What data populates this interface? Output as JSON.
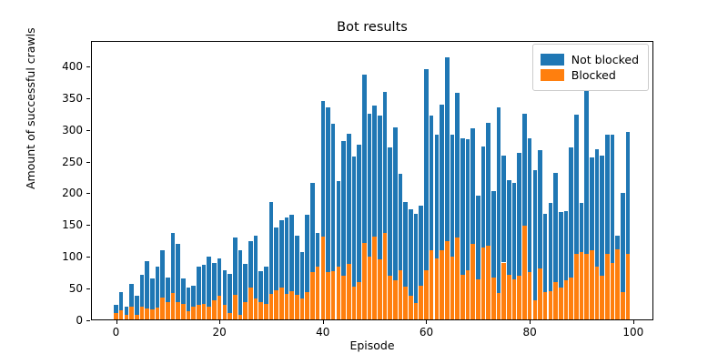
{
  "figure": {
    "title": "Bot results"
  },
  "axes": {
    "xlabel": "Episode",
    "ylabel": "Amount of successful crawls",
    "x_tick_labels": [
      "0",
      "20",
      "40",
      "60",
      "80",
      "100"
    ],
    "y_tick_labels": [
      "0",
      "50",
      "100",
      "150",
      "200",
      "250",
      "300",
      "350",
      "400"
    ]
  },
  "legend": {
    "position": "upper right",
    "items": [
      {
        "label": "Not blocked",
        "color": "#1f77b4"
      },
      {
        "label": "Blocked",
        "color": "#ff7f0e"
      }
    ]
  },
  "chart_data": {
    "type": "bar",
    "stacked": true,
    "title": "Bot results",
    "xlabel": "Episode",
    "ylabel": "Amount of successful crawls",
    "xlim": [
      -5.4,
      104.4
    ],
    "ylim": [
      0,
      440
    ],
    "x_ticks": [
      0,
      20,
      40,
      60,
      80,
      100
    ],
    "y_ticks": [
      0,
      50,
      100,
      150,
      200,
      250,
      300,
      350,
      400
    ],
    "grid": false,
    "legend_position": "upper right",
    "x": [
      0,
      1,
      2,
      3,
      4,
      5,
      6,
      7,
      8,
      9,
      10,
      11,
      12,
      13,
      14,
      15,
      16,
      17,
      18,
      19,
      20,
      21,
      22,
      23,
      24,
      25,
      26,
      27,
      28,
      29,
      30,
      31,
      32,
      33,
      34,
      35,
      36,
      37,
      38,
      39,
      40,
      41,
      42,
      43,
      44,
      45,
      46,
      47,
      48,
      49,
      50,
      51,
      52,
      53,
      54,
      55,
      56,
      57,
      58,
      59,
      60,
      61,
      62,
      63,
      64,
      65,
      66,
      67,
      68,
      69,
      70,
      71,
      72,
      73,
      74,
      75,
      76,
      77,
      78,
      79,
      80,
      81,
      82,
      83,
      84,
      85,
      86,
      87,
      88,
      89,
      90,
      91,
      92,
      93,
      94,
      95,
      96,
      97,
      98,
      99
    ],
    "series": [
      {
        "name": "Not blocked",
        "color": "#1f77b4",
        "values": [
          13,
          29,
          13,
          35,
          30,
          50,
          74,
          49,
          65,
          74,
          39,
          94,
          91,
          40,
          37,
          33,
          60,
          62,
          78,
          60,
          59,
          55,
          61,
          90,
          103,
          60,
          73,
          98,
          50,
          58,
          145,
          98,
          106,
          120,
          120,
          93,
          73,
          122,
          140,
          53,
          213,
          259,
          232,
          135,
          213,
          205,
          205,
          217,
          265,
          225,
          206,
          226,
          222,
          203,
          241,
          152,
          134,
          136,
          141,
          125,
          317,
          213,
          195,
          230,
          289,
          192,
          229,
          215,
          206,
          183,
          132,
          159,
          193,
          137,
          293,
          168,
          149,
          152,
          194,
          176,
          211,
          204,
          187,
          124,
          139,
          172,
          119,
          109,
          206,
          220,
          78,
          263,
          146,
          185,
          189,
          188,
          203,
          22,
          155,
          192
        ]
      },
      {
        "name": "Blocked",
        "color": "#ff7f0e",
        "values": [
          12,
          16,
          9,
          22,
          8,
          22,
          19,
          17,
          20,
          36,
          28,
          43,
          29,
          26,
          14,
          22,
          24,
          26,
          22,
          31,
          39,
          24,
          12,
          40,
          8,
          29,
          52,
          35,
          28,
          26,
          41,
          48,
          52,
          42,
          46,
          40,
          35,
          44,
          76,
          84,
          132,
          76,
          78,
          84,
          70,
          89,
          53,
          60,
          122,
          100,
          132,
          96,
          138,
          70,
          63,
          79,
          53,
          39,
          27,
          55,
          79,
          110,
          98,
          110,
          125,
          101,
          130,
          72,
          79,
          120,
          65,
          115,
          118,
          67,
          43,
          91,
          72,
          65,
          70,
          149,
          76,
          32,
          81,
          44,
          46,
          60,
          51,
          63,
          67,
          104,
          107,
          105,
          110,
          85,
          70,
          105,
          90,
          112,
          45,
          105
        ]
      }
    ]
  }
}
